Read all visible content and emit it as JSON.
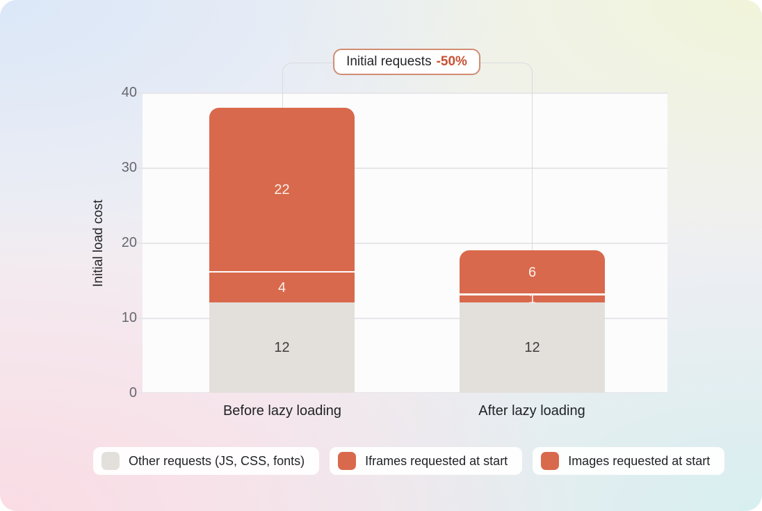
{
  "badge": {
    "label": "Initial requests",
    "delta": "-50%"
  },
  "chart_data": {
    "type": "bar",
    "stacked": true,
    "title": "",
    "ylabel": "Initial load cost",
    "xlabel": "",
    "ylim": [
      0,
      40
    ],
    "yticks": [
      0,
      10,
      20,
      30,
      40
    ],
    "grid": true,
    "legend_position": "bottom",
    "annotation": "Initial requests -50%",
    "categories": [
      "Before lazy loading",
      "After lazy loading"
    ],
    "series": [
      {
        "name": "Other requests (JS, CSS, fonts)",
        "color": "#e3e0db",
        "values": [
          12,
          12
        ]
      },
      {
        "name": "Iframes requested at start",
        "color": "#d9694c",
        "values": [
          4,
          1
        ]
      },
      {
        "name": "Images requested at start",
        "color": "#d9694c",
        "values": [
          22,
          6
        ]
      }
    ],
    "totals": [
      38,
      19
    ]
  },
  "colors": {
    "accent_orange": "#d9694c",
    "neutral_gray": "#e3e0db",
    "delta_text": "#c75133",
    "badge_border": "#d18b72",
    "connector_line": "#d9dade",
    "plot_background": "#fcfcfd"
  }
}
